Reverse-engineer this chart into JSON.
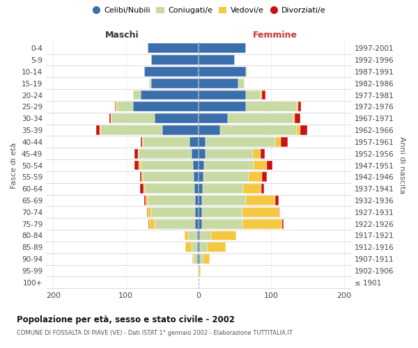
{
  "age_groups": [
    "100+",
    "95-99",
    "90-94",
    "85-89",
    "80-84",
    "75-79",
    "70-74",
    "65-69",
    "60-64",
    "55-59",
    "50-54",
    "45-49",
    "40-44",
    "35-39",
    "30-34",
    "25-29",
    "20-24",
    "15-19",
    "10-14",
    "5-9",
    "0-4"
  ],
  "birth_years": [
    "≤ 1901",
    "1902-1906",
    "1907-1911",
    "1912-1916",
    "1917-1921",
    "1922-1926",
    "1927-1931",
    "1932-1936",
    "1937-1941",
    "1942-1946",
    "1947-1951",
    "1952-1956",
    "1957-1961",
    "1962-1966",
    "1967-1971",
    "1972-1976",
    "1977-1981",
    "1982-1986",
    "1987-1991",
    "1992-1996",
    "1997-2001"
  ],
  "males_celibi": [
    0,
    0,
    2,
    2,
    2,
    5,
    5,
    5,
    6,
    7,
    8,
    10,
    12,
    50,
    60,
    90,
    80,
    65,
    75,
    65,
    70
  ],
  "males_coniugati": [
    0,
    1,
    5,
    8,
    12,
    55,
    60,
    65,
    68,
    70,
    72,
    72,
    65,
    85,
    60,
    22,
    10,
    3,
    0,
    0,
    0
  ],
  "males_vedovi": [
    0,
    0,
    2,
    8,
    5,
    8,
    5,
    3,
    2,
    2,
    2,
    1,
    1,
    1,
    1,
    2,
    0,
    0,
    0,
    0,
    0
  ],
  "males_divorziati": [
    0,
    0,
    0,
    0,
    0,
    1,
    1,
    2,
    5,
    2,
    6,
    5,
    2,
    5,
    2,
    1,
    0,
    0,
    0,
    0,
    0
  ],
  "females_nubili": [
    0,
    0,
    2,
    2,
    2,
    5,
    5,
    5,
    6,
    7,
    8,
    10,
    10,
    30,
    40,
    65,
    65,
    55,
    65,
    50,
    65
  ],
  "females_coniugate": [
    0,
    1,
    5,
    10,
    15,
    55,
    55,
    60,
    55,
    62,
    68,
    65,
    95,
    105,
    90,
    70,
    20,
    8,
    2,
    0,
    0
  ],
  "females_vedove": [
    0,
    2,
    8,
    25,
    35,
    55,
    50,
    40,
    25,
    18,
    18,
    10,
    8,
    5,
    2,
    2,
    2,
    0,
    0,
    0,
    0
  ],
  "females_divorziate": [
    0,
    0,
    0,
    0,
    0,
    2,
    1,
    5,
    4,
    7,
    8,
    6,
    10,
    10,
    8,
    4,
    5,
    0,
    0,
    0,
    0
  ],
  "color_celibi": "#3a6eac",
  "color_coniugati": "#c8daa4",
  "color_vedovi": "#f5c842",
  "color_divorziati": "#cc1111",
  "title": "Popolazione per età, sesso e stato civile - 2002",
  "subtitle": "COMUNE DI FOSSALTA DI PIAVE (VE) - Dati ISTAT 1° gennaio 2002 - Elaborazione TUTTITALIA.IT",
  "label_maschi": "Maschi",
  "label_femmine": "Femmine",
  "ylabel_left": "Fasce di età",
  "ylabel_right": "Anni di nascita",
  "legend_labels": [
    "Celibi/Nubili",
    "Coniugati/e",
    "Vedovi/e",
    "Divorziati/e"
  ],
  "xlim": 210,
  "bg_color": "#ffffff",
  "grid_color": "#cccccc"
}
